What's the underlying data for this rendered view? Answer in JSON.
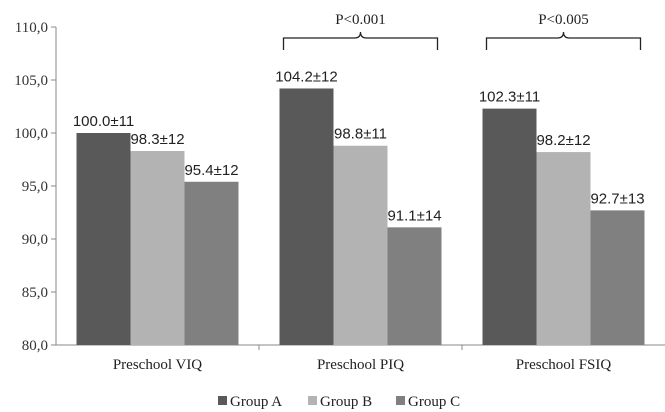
{
  "chart_data": {
    "type": "bar",
    "categories": [
      "Preschool VIQ",
      "Preschool PIQ",
      "Preschool FSIQ"
    ],
    "series": [
      {
        "name": "Group A",
        "values": [
          100.0,
          104.2,
          102.3
        ],
        "labels": [
          "100.0±11",
          "104.2±12",
          "102.3±11"
        ],
        "color": "#595959"
      },
      {
        "name": "Group B",
        "values": [
          98.3,
          98.8,
          98.2
        ],
        "labels": [
          "98.3±12",
          "98.8±11",
          "98.2±12"
        ],
        "color": "#b3b3b3"
      },
      {
        "name": "Group C",
        "values": [
          95.4,
          91.1,
          92.7
        ],
        "labels": [
          "95.4±12",
          "91.1±14",
          "92.7±13"
        ],
        "color": "#808080"
      }
    ],
    "ylim": [
      80,
      110
    ],
    "yticks": [
      "80,0",
      "85,0",
      "90,0",
      "95,0",
      "100,0",
      "105,0",
      "110,0"
    ],
    "ytick_values": [
      80,
      85,
      90,
      95,
      100,
      105,
      110
    ],
    "annotations": [
      {
        "category": "Preschool PIQ",
        "text": "P<0.001"
      },
      {
        "category": "Preschool FSIQ",
        "text": "P<0.005"
      }
    ],
    "legend_position": "bottom",
    "grid": false,
    "xlabel": "",
    "ylabel": "",
    "title": ""
  }
}
